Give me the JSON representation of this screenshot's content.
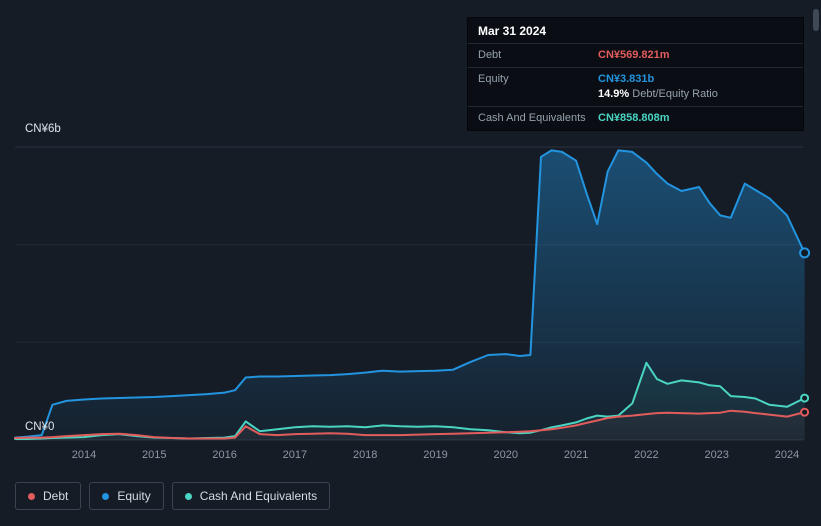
{
  "tooltip": {
    "date": "Mar 31 2024",
    "debt_label": "Debt",
    "debt_value": "CN¥569.821m",
    "equity_label": "Equity",
    "equity_value": "CN¥3.831b",
    "ratio_value": "14.9%",
    "ratio_label": "Debt/Equity Ratio",
    "cash_label": "Cash And Equivalents",
    "cash_value": "CN¥858.808m"
  },
  "axis": {
    "y_top_label": "CN¥6b",
    "y_zero_label": "CN¥0"
  },
  "legend": {
    "debt": "Debt",
    "equity": "Equity",
    "cash": "Cash And Equivalents"
  },
  "colors": {
    "debt": "#e25c5c",
    "equity": "#2394df",
    "cash": "#4ad4c2",
    "grid": "#212a35",
    "grid_edge": "#2a323f",
    "marker_fill": "#131a23"
  },
  "chart_data": {
    "type": "area",
    "unit": "CN¥ billions",
    "grid": true,
    "legend_position": "bottom-left",
    "y_axis": {
      "min": 0,
      "max": 6,
      "top_label": "CN¥6b",
      "zero_label": "CN¥0"
    },
    "y_gridlines": [
      6,
      4,
      2,
      0
    ],
    "x_ticks": [
      "2014",
      "2015",
      "2016",
      "2017",
      "2018",
      "2019",
      "2020",
      "2021",
      "2022",
      "2023",
      "2024"
    ],
    "highlighted_point": {
      "date": "Mar 31 2024",
      "debt": "CN¥569.821m",
      "equity": "CN¥3.831b",
      "debt_equity_ratio": "14.9%",
      "cash_and_equivalents": "CN¥858.808m"
    },
    "x": [
      2013.02,
      2013.2,
      2013.4,
      2013.55,
      2013.75,
      2014.0,
      2014.25,
      2014.5,
      2014.75,
      2015.0,
      2015.25,
      2015.5,
      2015.75,
      2016.0,
      2016.15,
      2016.3,
      2016.5,
      2016.75,
      2017.0,
      2017.25,
      2017.5,
      2017.75,
      2018.0,
      2018.25,
      2018.5,
      2018.75,
      2019.0,
      2019.25,
      2019.5,
      2019.75,
      2020.0,
      2020.2,
      2020.35,
      2020.5,
      2020.65,
      2020.8,
      2021.0,
      2021.15,
      2021.3,
      2021.45,
      2021.6,
      2021.8,
      2022.0,
      2022.15,
      2022.3,
      2022.5,
      2022.75,
      2022.9,
      2023.05,
      2023.2,
      2023.4,
      2023.55,
      2023.75,
      2024.0,
      2024.25
    ],
    "series": [
      {
        "name": "Equity",
        "key": "equity",
        "values": [
          0.05,
          0.07,
          0.1,
          0.72,
          0.8,
          0.83,
          0.85,
          0.86,
          0.87,
          0.88,
          0.9,
          0.92,
          0.94,
          0.97,
          1.02,
          1.28,
          1.3,
          1.3,
          1.31,
          1.32,
          1.33,
          1.35,
          1.38,
          1.42,
          1.4,
          1.41,
          1.42,
          1.44,
          1.6,
          1.74,
          1.76,
          1.72,
          1.74,
          5.8,
          5.93,
          5.9,
          5.72,
          5.05,
          4.42,
          5.5,
          5.93,
          5.9,
          5.68,
          5.45,
          5.25,
          5.1,
          5.18,
          4.85,
          4.6,
          4.55,
          5.25,
          5.12,
          4.95,
          4.6,
          3.831
        ]
      },
      {
        "name": "Cash And Equivalents",
        "key": "cash",
        "values": [
          0.02,
          0.02,
          0.03,
          0.04,
          0.05,
          0.06,
          0.1,
          0.12,
          0.08,
          0.05,
          0.04,
          0.03,
          0.04,
          0.05,
          0.08,
          0.38,
          0.18,
          0.22,
          0.26,
          0.28,
          0.27,
          0.28,
          0.26,
          0.3,
          0.28,
          0.27,
          0.28,
          0.26,
          0.22,
          0.2,
          0.16,
          0.14,
          0.15,
          0.2,
          0.26,
          0.3,
          0.36,
          0.44,
          0.5,
          0.48,
          0.5,
          0.75,
          1.58,
          1.25,
          1.15,
          1.22,
          1.18,
          1.12,
          1.1,
          0.9,
          0.88,
          0.85,
          0.72,
          0.68,
          0.859
        ]
      },
      {
        "name": "Debt",
        "key": "debt",
        "values": [
          0.04,
          0.05,
          0.05,
          0.06,
          0.08,
          0.1,
          0.12,
          0.13,
          0.1,
          0.06,
          0.04,
          0.03,
          0.03,
          0.03,
          0.05,
          0.28,
          0.12,
          0.1,
          0.12,
          0.13,
          0.14,
          0.13,
          0.1,
          0.1,
          0.1,
          0.11,
          0.12,
          0.13,
          0.14,
          0.15,
          0.16,
          0.17,
          0.18,
          0.2,
          0.22,
          0.25,
          0.3,
          0.35,
          0.4,
          0.45,
          0.48,
          0.5,
          0.53,
          0.55,
          0.56,
          0.55,
          0.54,
          0.55,
          0.56,
          0.6,
          0.58,
          0.55,
          0.52,
          0.48,
          0.57
        ]
      }
    ]
  }
}
